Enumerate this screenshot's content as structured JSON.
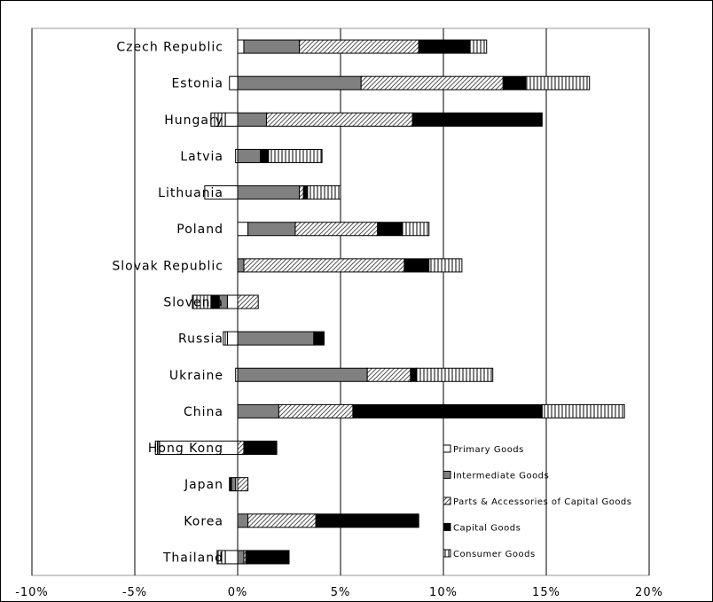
{
  "chart_data": {
    "type": "bar",
    "orientation": "horizontal",
    "stacked": true,
    "title": "",
    "xlabel": "",
    "ylabel": "",
    "xlim": [
      -10,
      20
    ],
    "xticks": [
      "-10%",
      "-5%",
      "0%",
      "5%",
      "10%",
      "15%",
      "20%"
    ],
    "grid": "vertical",
    "legend_position": "bottom-right",
    "categories": [
      "Czech Republic",
      "Estonia",
      "Hungary",
      "Latvia",
      "Lithuania",
      "Poland",
      "Slovak Republic",
      "Slovenia",
      "Russia",
      "Ukraine",
      "China",
      "Hong Kong",
      "Japan",
      "Korea",
      "Thailand"
    ],
    "series": [
      {
        "name": "Primary Goods",
        "pattern": "white",
        "values": [
          0.3,
          -0.4,
          -0.6,
          -0.1,
          -1.6,
          0.5,
          0.0,
          -0.5,
          -0.5,
          -0.1,
          0.0,
          -3.8,
          -0.1,
          0.0,
          -0.6
        ]
      },
      {
        "name": "Intermediate Goods",
        "pattern": "gray",
        "values": [
          2.7,
          6.0,
          1.4,
          1.1,
          3.0,
          2.3,
          0.3,
          -0.4,
          3.7,
          6.3,
          2.0,
          -0.1,
          -0.2,
          0.5,
          0.3
        ]
      },
      {
        "name": "Parts & Accessories of Capital Goods",
        "pattern": "hatched",
        "values": [
          5.8,
          6.9,
          7.1,
          0.0,
          0.2,
          4.0,
          7.8,
          1.0,
          0.0,
          2.1,
          3.6,
          0.3,
          0.5,
          3.3,
          0.1
        ]
      },
      {
        "name": "Capital Goods",
        "pattern": "black",
        "values": [
          2.5,
          1.1,
          6.3,
          0.4,
          0.2,
          1.2,
          1.2,
          -0.4,
          0.5,
          0.3,
          9.2,
          1.6,
          -0.1,
          5.0,
          2.1
        ]
      },
      {
        "name": "Consumer Goods",
        "pattern": "vertical-lines",
        "values": [
          0.8,
          3.1,
          -0.7,
          2.6,
          1.6,
          1.3,
          1.6,
          -0.9,
          -0.2,
          3.7,
          4.0,
          -0.1,
          0.0,
          0.0,
          -0.4
        ]
      }
    ]
  }
}
